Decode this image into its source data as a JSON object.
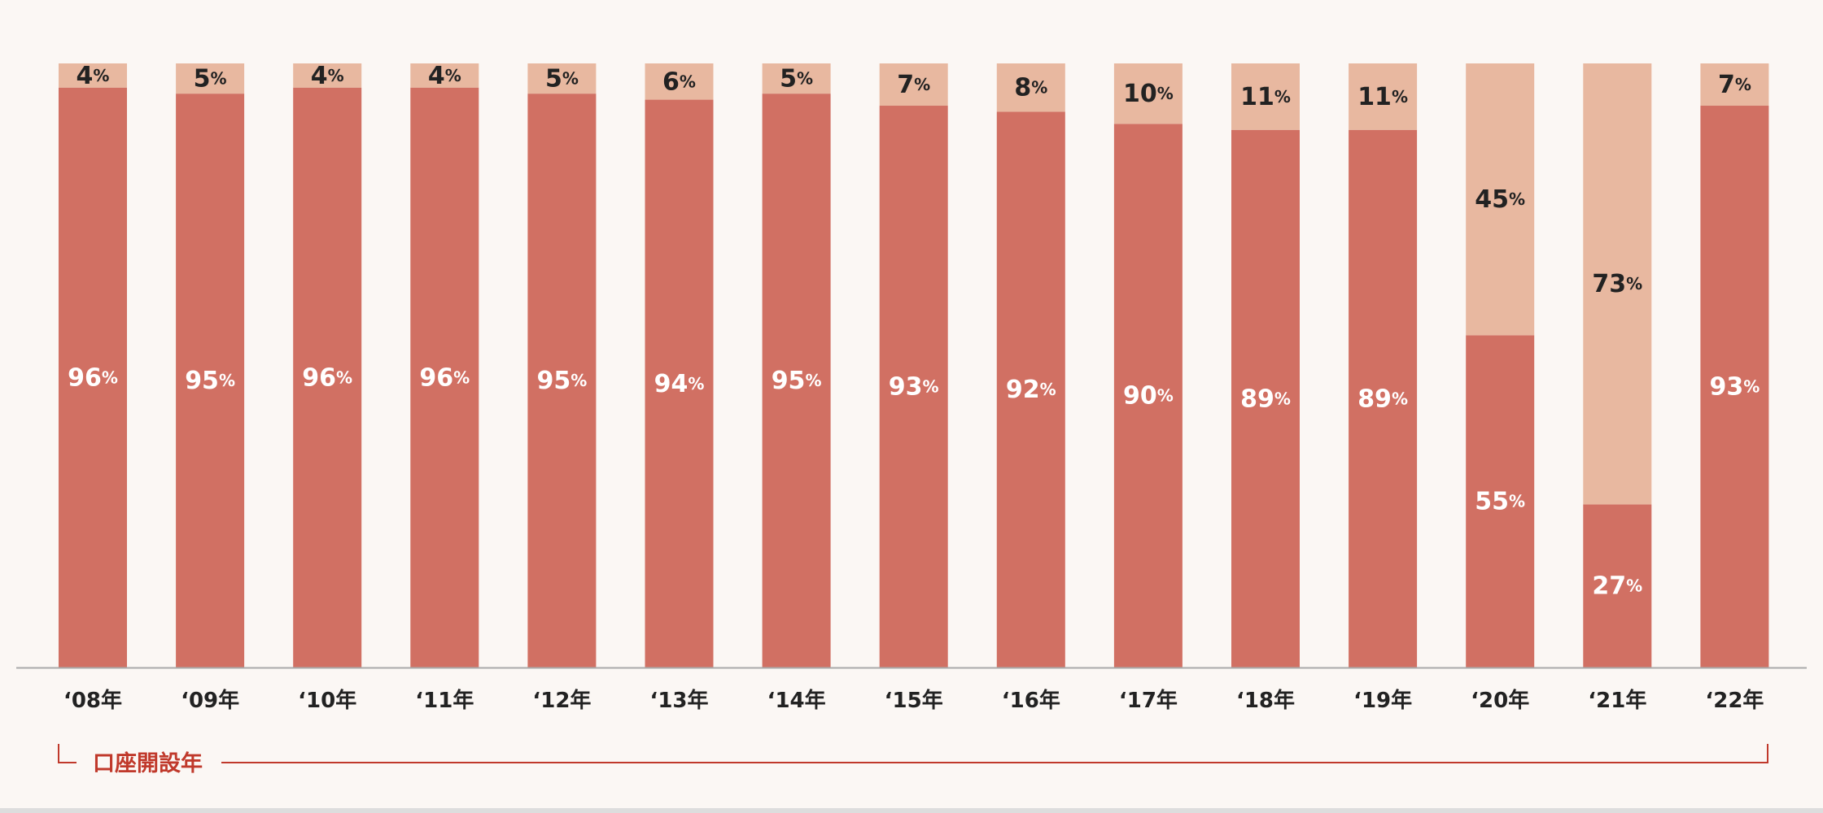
{
  "chart_data": {
    "type": "bar",
    "stacked": true,
    "categories": [
      "‘08年",
      "‘09年",
      "‘10年",
      "‘11年",
      "‘12年",
      "‘13年",
      "‘14年",
      "‘15年",
      "‘16年",
      "‘17年",
      "‘18年",
      "‘19年",
      "‘20年",
      "‘21年",
      "‘22年"
    ],
    "series": [
      {
        "color": "#d17063",
        "values": [
          96,
          95,
          96,
          96,
          95,
          94,
          95,
          93,
          92,
          90,
          89,
          89,
          55,
          27,
          93
        ],
        "label_color": "#ffffff"
      },
      {
        "color": "#e8b8a0",
        "values": [
          4,
          5,
          4,
          4,
          5,
          6,
          5,
          7,
          8,
          10,
          11,
          11,
          45,
          73,
          7
        ],
        "label_color": "#222222"
      }
    ],
    "value_suffix": "%",
    "ylim": [
      0,
      100
    ],
    "grid": false,
    "legend": "none",
    "axis_bracket_label": "口座開設年",
    "axis_color": "#aaaaaa",
    "bracket_color": "#c0392b"
  }
}
